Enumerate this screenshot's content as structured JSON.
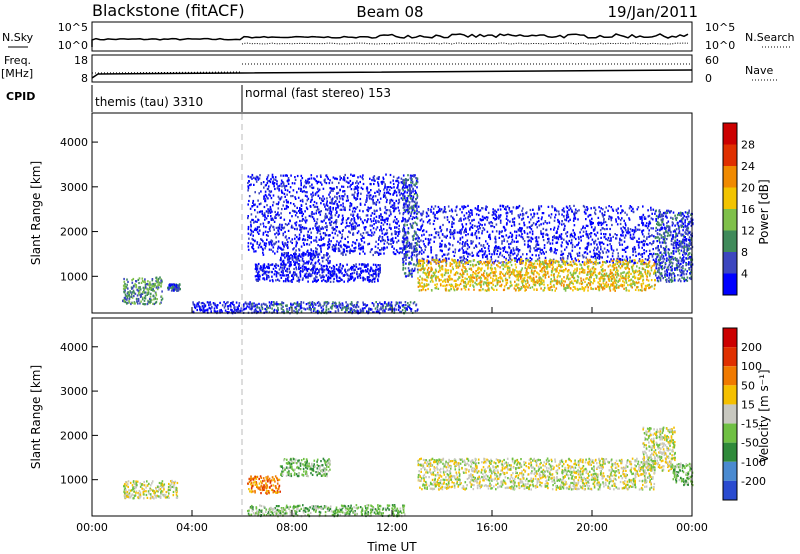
{
  "header": {
    "station": "Blackstone (fitACF)",
    "beam": "Beam 08",
    "date": "19/Jan/2011"
  },
  "status_panels": {
    "nsky": {
      "left_label": "N.Sky",
      "right_label": "N.Search",
      "ticks": [
        "10^5",
        "10^0"
      ],
      "right_ticks": [
        "10^5",
        "10^0"
      ]
    },
    "freq": {
      "left_label_1": "Freq.",
      "left_label_2": "[MHz]",
      "right_label": "Nave",
      "ticks": [
        "18",
        "8"
      ],
      "right_ticks": [
        "60",
        "0"
      ]
    },
    "cpid": {
      "label": "CPID",
      "segments": [
        {
          "name": "themis (tau) 3310",
          "start_hour": 0
        },
        {
          "name": "normal (fast stereo) 153",
          "start_hour": 6
        }
      ]
    }
  },
  "chart_data": [
    {
      "type": "heatmap",
      "name": "power",
      "ylabel": "Slant Range [km]",
      "xlabel": "",
      "x_ticks": [
        "00:00",
        "04:00",
        "08:00",
        "12:00",
        "16:00",
        "20:00",
        "00:00"
      ],
      "y_ticks": [
        "1000",
        "2000",
        "3000",
        "4000"
      ],
      "xlim_hours": [
        0,
        24
      ],
      "ylim_km": [
        180,
        4650
      ],
      "colorbar": {
        "label": "Power [dB]",
        "ticks": [
          "4",
          "8",
          "12",
          "16",
          "20",
          "24",
          "28"
        ],
        "colors": [
          "#0000ff",
          "#3c46bf",
          "#3f8a5a",
          "#7fc04a",
          "#f2c400",
          "#f08a00",
          "#e03000",
          "#cc0000"
        ]
      },
      "regions": [
        {
          "t0": 1.2,
          "t1": 2.8,
          "r0": 400,
          "r1": 1000,
          "level": 2
        },
        {
          "t0": 3.0,
          "t1": 3.5,
          "r0": 700,
          "r1": 850,
          "level": 1
        },
        {
          "t0": 4.0,
          "t1": 6.2,
          "r0": 200,
          "r1": 450,
          "level": 0
        },
        {
          "t0": 6.2,
          "t1": 13.0,
          "r0": 200,
          "r1": 450,
          "level": 1
        },
        {
          "t0": 6.5,
          "t1": 11.5,
          "r0": 900,
          "r1": 1300,
          "level": 0
        },
        {
          "t0": 7.5,
          "t1": 9.5,
          "r0": 1300,
          "r1": 1550,
          "level": 0
        },
        {
          "t0": 6.2,
          "t1": 12.5,
          "r0": 1500,
          "r1": 3300,
          "level": 0
        },
        {
          "t0": 12.4,
          "t1": 13.0,
          "r0": 1000,
          "r1": 3300,
          "level": 1
        },
        {
          "t0": 13.0,
          "t1": 22.5,
          "r0": 1300,
          "r1": 2600,
          "level": 0
        },
        {
          "t0": 13.0,
          "t1": 22.5,
          "r0": 700,
          "r1": 1400,
          "level": 4
        },
        {
          "t0": 22.5,
          "t1": 24.0,
          "r0": 900,
          "r1": 2500,
          "level": 1
        }
      ]
    },
    {
      "type": "heatmap",
      "name": "velocity",
      "ylabel": "Slant Range [km]",
      "xlabel": "Time UT",
      "x_ticks": [
        "00:00",
        "04:00",
        "08:00",
        "12:00",
        "16:00",
        "20:00",
        "00:00"
      ],
      "y_ticks": [
        "1000",
        "2000",
        "3000",
        "4000"
      ],
      "xlim_hours": [
        0,
        24
      ],
      "ylim_km": [
        180,
        4650
      ],
      "colorbar": {
        "label": "Velocity [m s⁻¹]",
        "ticks": [
          "200",
          "100",
          "50",
          "15",
          "-15",
          "-50",
          "-100",
          "-200"
        ],
        "colors": [
          "#2a4bd0",
          "#4a8ad0",
          "#2f8a3a",
          "#6fc043",
          "#c8c8c0",
          "#f5c000",
          "#f07a00",
          "#e03000",
          "#cc0000"
        ]
      },
      "regions": [
        {
          "t0": 1.2,
          "t1": 3.4,
          "r0": 600,
          "r1": 1000,
          "level": 4
        },
        {
          "t0": 6.2,
          "t1": 7.5,
          "r0": 700,
          "r1": 1100,
          "level": 6
        },
        {
          "t0": 7.5,
          "t1": 9.5,
          "r0": 1100,
          "r1": 1500,
          "level": 3
        },
        {
          "t0": 6.2,
          "t1": 12.5,
          "r0": 200,
          "r1": 450,
          "level": 3
        },
        {
          "t0": 13.0,
          "t1": 22.5,
          "r0": 800,
          "r1": 1500,
          "level": 4
        },
        {
          "t0": 22.0,
          "t1": 23.3,
          "r0": 1200,
          "r1": 2200,
          "level": 4
        },
        {
          "t0": 23.2,
          "t1": 24.0,
          "r0": 900,
          "r1": 1400,
          "level": 3
        }
      ]
    }
  ]
}
